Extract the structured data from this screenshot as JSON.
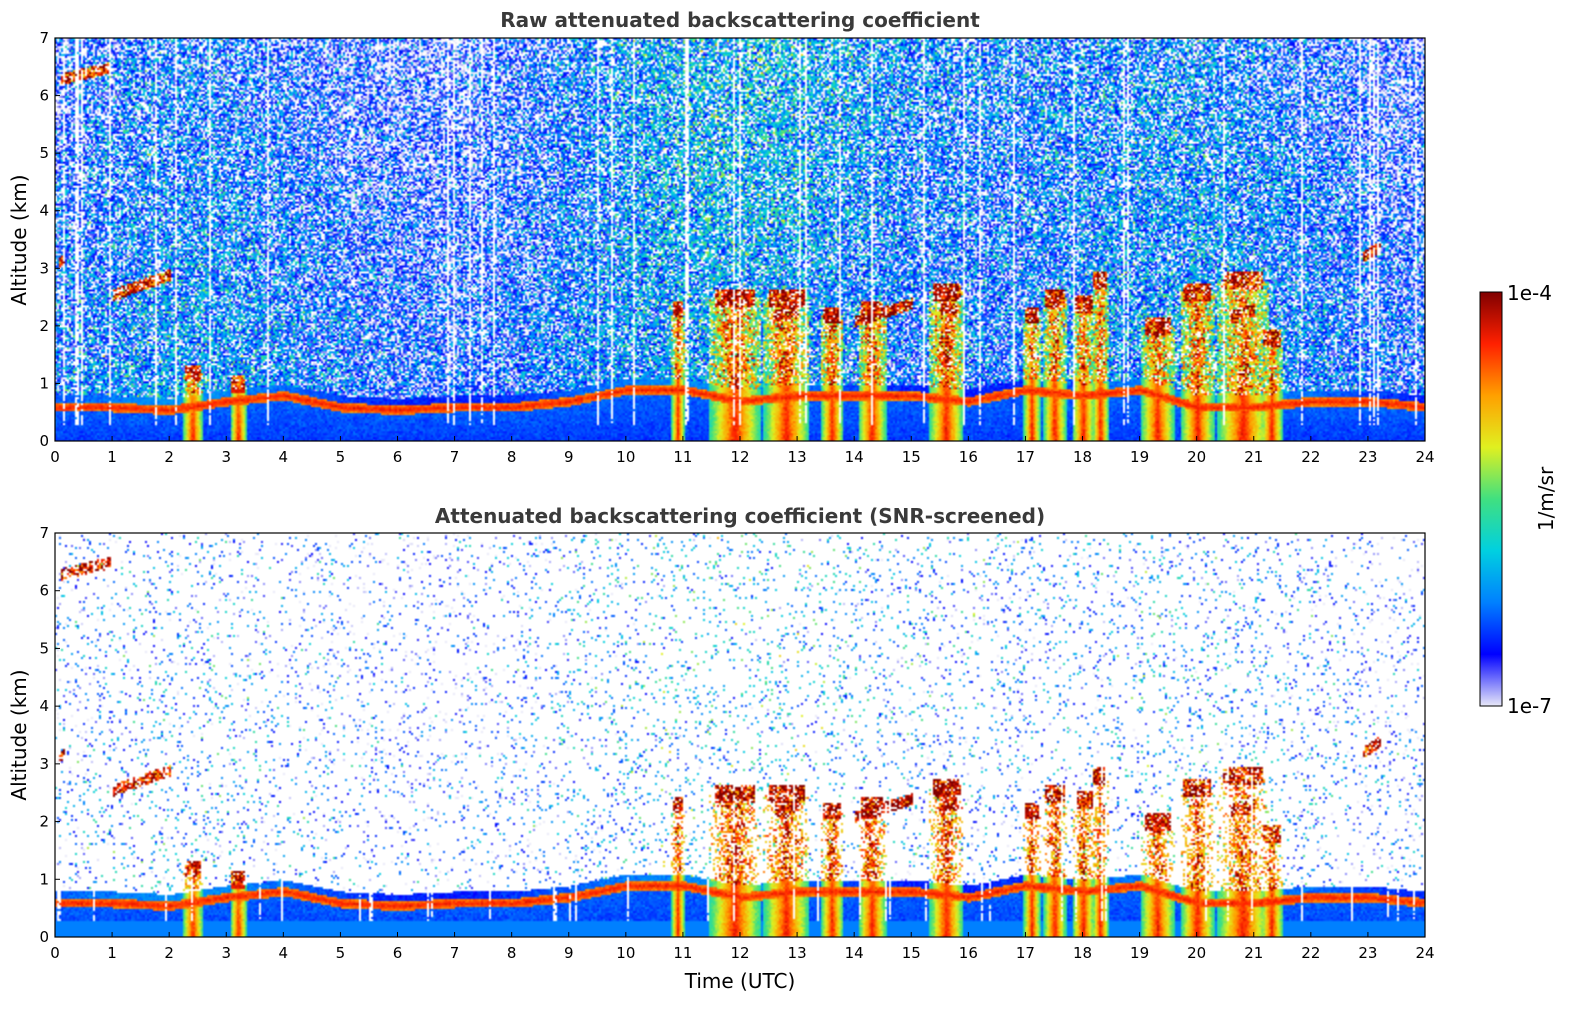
{
  "chart_data": [
    {
      "type": "heatmap",
      "title": "Raw attenuated backscattering coefficient",
      "xlabel": "",
      "ylabel": "Altitude (km)",
      "xlim": [
        0,
        24
      ],
      "ylim": [
        0,
        7
      ],
      "x_ticks": [
        "0",
        "1",
        "2",
        "3",
        "4",
        "5",
        "6",
        "7",
        "8",
        "9",
        "10",
        "11",
        "12",
        "13",
        "14",
        "15",
        "16",
        "17",
        "18",
        "19",
        "20",
        "21",
        "22",
        "23",
        "24"
      ],
      "y_ticks": [
        "0",
        "1",
        "2",
        "3",
        "4",
        "5",
        "6",
        "7"
      ],
      "screened": false
    },
    {
      "type": "heatmap",
      "title": "Attenuated backscattering coefficient (SNR-screened)",
      "xlabel": "Time (UTC)",
      "ylabel": "Altitude (km)",
      "xlim": [
        0,
        24
      ],
      "ylim": [
        0,
        7
      ],
      "x_ticks": [
        "0",
        "1",
        "2",
        "3",
        "4",
        "5",
        "6",
        "7",
        "8",
        "9",
        "10",
        "11",
        "12",
        "13",
        "14",
        "15",
        "16",
        "17",
        "18",
        "19",
        "20",
        "21",
        "22",
        "23",
        "24"
      ],
      "y_ticks": [
        "0",
        "1",
        "2",
        "3",
        "4",
        "5",
        "6",
        "7"
      ],
      "screened": true
    }
  ],
  "colorbar": {
    "label": "1/m/sr",
    "max_label": "1e-4",
    "min_label": "1e-7",
    "scale": "log",
    "range": [
      1e-07,
      0.0001
    ],
    "colormap": [
      "#e8e8f8",
      "#0000ff",
      "#0080ff",
      "#00d0e0",
      "#40e080",
      "#e0f020",
      "#ffa000",
      "#ff2000",
      "#800000"
    ]
  },
  "features": {
    "boundary_layer_top_km": [
      [
        0,
        0.6
      ],
      [
        1,
        0.6
      ],
      [
        2,
        0.55
      ],
      [
        3,
        0.7
      ],
      [
        4,
        0.8
      ],
      [
        5,
        0.6
      ],
      [
        6,
        0.55
      ],
      [
        7,
        0.6
      ],
      [
        8,
        0.6
      ],
      [
        9,
        0.7
      ],
      [
        10,
        0.9
      ],
      [
        11,
        0.9
      ],
      [
        12,
        0.7
      ],
      [
        13,
        0.8
      ],
      [
        14,
        0.8
      ],
      [
        15,
        0.8
      ],
      [
        16,
        0.7
      ],
      [
        17,
        0.9
      ],
      [
        18,
        0.8
      ],
      [
        19,
        0.9
      ],
      [
        20,
        0.6
      ],
      [
        21,
        0.6
      ],
      [
        22,
        0.7
      ],
      [
        23,
        0.7
      ],
      [
        24,
        0.6
      ]
    ],
    "convective_plumes": [
      {
        "t": 2.4,
        "w": 0.18,
        "top": 1.2
      },
      {
        "t": 3.2,
        "w": 0.15,
        "top": 1.0
      },
      {
        "t": 10.9,
        "w": 0.12,
        "top": 2.3
      },
      {
        "t": 11.9,
        "w": 0.45,
        "top": 2.5
      },
      {
        "t": 12.8,
        "w": 0.4,
        "top": 2.5
      },
      {
        "t": 13.6,
        "w": 0.2,
        "top": 2.2
      },
      {
        "t": 14.3,
        "w": 0.25,
        "top": 2.3
      },
      {
        "t": 15.6,
        "w": 0.3,
        "top": 2.6
      },
      {
        "t": 17.1,
        "w": 0.15,
        "top": 2.2
      },
      {
        "t": 17.5,
        "w": 0.2,
        "top": 2.5
      },
      {
        "t": 18.0,
        "w": 0.2,
        "top": 2.4
      },
      {
        "t": 18.3,
        "w": 0.15,
        "top": 2.8
      },
      {
        "t": 19.3,
        "w": 0.3,
        "top": 2.0
      },
      {
        "t": 20.0,
        "w": 0.3,
        "top": 2.6
      },
      {
        "t": 20.8,
        "w": 0.45,
        "top": 2.8
      },
      {
        "t": 21.3,
        "w": 0.2,
        "top": 1.8
      }
    ],
    "cloud_layers": [
      {
        "t0": 1.0,
        "t1": 2.0,
        "z0": 2.55,
        "z1": 2.9
      },
      {
        "t0": 0.05,
        "t1": 0.15,
        "z0": 3.1,
        "z1": 3.2
      },
      {
        "t0": 0.1,
        "t1": 0.95,
        "z0": 6.3,
        "z1": 6.5
      },
      {
        "t0": 22.9,
        "t1": 23.2,
        "z0": 3.2,
        "z1": 3.4
      },
      {
        "t0": 20.6,
        "t1": 21.0,
        "z0": 2.2,
        "z1": 2.3
      },
      {
        "t0": 15.5,
        "t1": 15.8,
        "z0": 2.3,
        "z1": 2.3
      },
      {
        "t0": 14.0,
        "t1": 15.0,
        "z0": 2.1,
        "z1": 2.4
      },
      {
        "t0": 12.6,
        "t1": 13.0,
        "z0": 2.2,
        "z1": 2.3
      }
    ]
  }
}
